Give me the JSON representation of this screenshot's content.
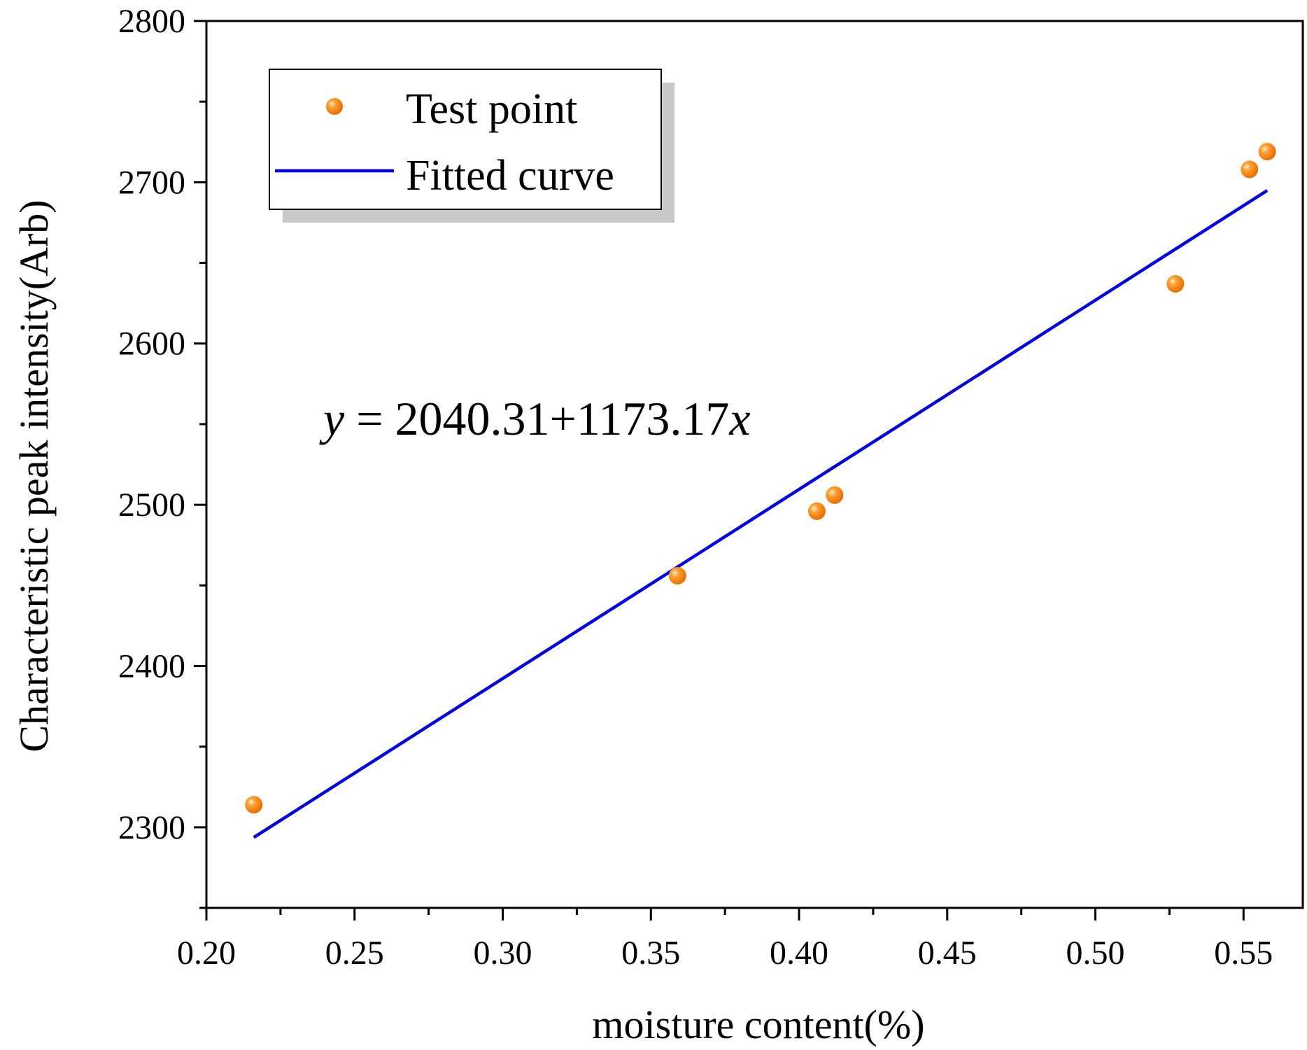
{
  "chart_data": {
    "type": "scatter",
    "title": "",
    "xlabel": "moisture content(%)",
    "ylabel": "Characteristic peak intensity(Arb)",
    "xlim": [
      0.2,
      0.57
    ],
    "ylim": [
      2250,
      2800
    ],
    "x_ticks": [
      0.2,
      0.25,
      0.3,
      0.35,
      0.4,
      0.45,
      0.5,
      0.55
    ],
    "x_tick_labels": [
      "0.20",
      "0.25",
      "0.30",
      "0.35",
      "0.40",
      "0.45",
      "0.50",
      "0.55"
    ],
    "y_ticks": [
      2300,
      2400,
      2500,
      2600,
      2700,
      2800
    ],
    "y_tick_labels": [
      "2300",
      "2400",
      "2500",
      "2600",
      "2700",
      "2800"
    ],
    "grid": false,
    "legend_position": "top-left",
    "series": [
      {
        "name": "Test point",
        "kind": "scatter",
        "color": "#ff8c00",
        "x": [
          0.216,
          0.359,
          0.406,
          0.412,
          0.527,
          0.552,
          0.558
        ],
        "y": [
          2314,
          2456,
          2496,
          2506,
          2637,
          2708,
          2719
        ]
      },
      {
        "name": "Fitted curve",
        "kind": "line",
        "color": "#0000e0",
        "x": [
          0.216,
          0.558
        ],
        "y": [
          2293.7,
          2694.9
        ]
      }
    ],
    "annotation": {
      "y_var": "y",
      "equals": " = ",
      "body": "2040.31+1173.17",
      "x_var": "x"
    }
  }
}
